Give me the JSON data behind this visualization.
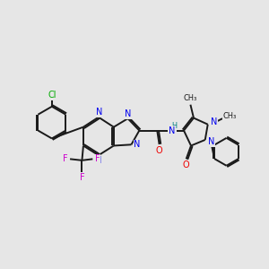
{
  "bg": "#e6e6e6",
  "bond_color": "#1a1a1a",
  "lw": 1.4,
  "fs": 7.0,
  "cl_color": "#00aa00",
  "n_color": "#0000ee",
  "o_color": "#ee0000",
  "f_color": "#cc00cc",
  "h_color": "#008080",
  "xlim": [
    0,
    10
  ],
  "ylim": [
    0,
    10
  ]
}
